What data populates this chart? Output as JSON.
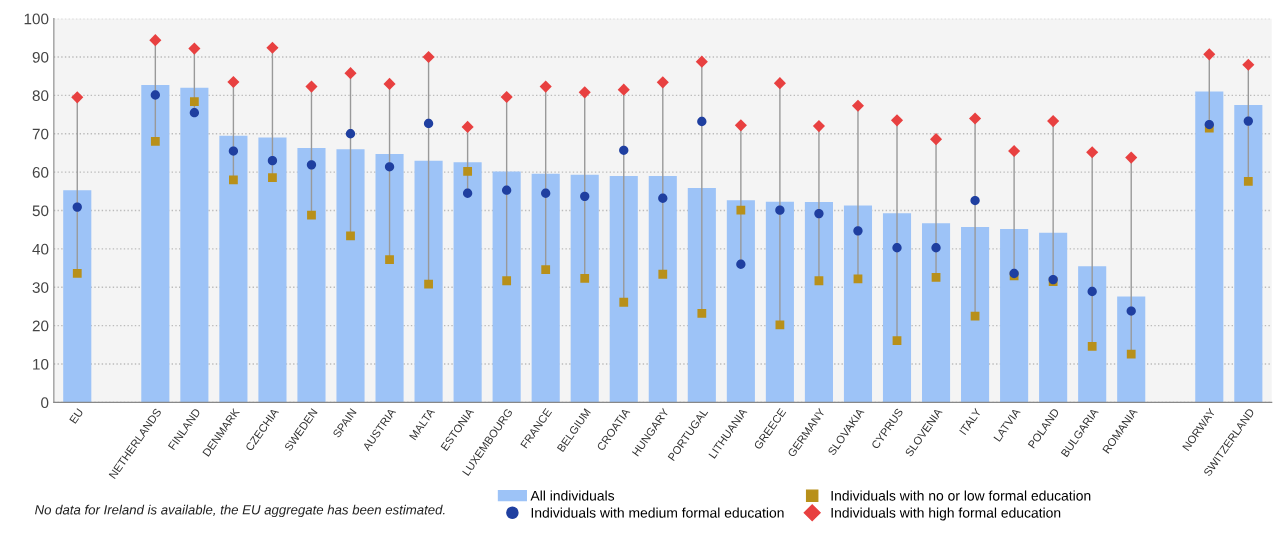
{
  "chart_data": {
    "type": "bar",
    "categories": [
      "EU",
      null,
      "NETHERLANDS",
      "FINLAND",
      "DENMARK",
      "CZECHIA",
      "SWEDEN",
      "SPAIN",
      "AUSTRIA",
      "MALTA",
      "ESTONIA",
      "LUXEMBOURG",
      "FRANCE",
      "BELGIUM",
      "CROATIA",
      "HUNGARY",
      "PORTUGAL",
      "LITHUANIA",
      "GREECE",
      "GERMANY",
      "SLOVAKIA",
      "CYPRUS",
      "SLOVENIA",
      "ITALY",
      "LATVIA",
      "POLAND",
      "BULGARIA",
      "ROMANIA",
      null,
      "NORWAY",
      "SWITZERLAND"
    ],
    "series": [
      {
        "name": "All individuals",
        "color": "#9dc3f7",
        "values": [
          55.3,
          null,
          82.7,
          82,
          69.5,
          69,
          66.3,
          66,
          64.7,
          63,
          62.6,
          60.2,
          59.6,
          59.3,
          59,
          59,
          55.9,
          52.7,
          52.3,
          52.2,
          51.3,
          49.3,
          46.7,
          45.7,
          45.2,
          44.2,
          35.5,
          27.6,
          null,
          81,
          77.5
        ]
      },
      {
        "name": "Individuals with no or low formal education",
        "type": "scatter",
        "marker": "square",
        "color": "#b8901a",
        "values": [
          33.6,
          null,
          68,
          78.4,
          58,
          58.6,
          48.8,
          43.4,
          37.2,
          30.8,
          60.2,
          31.7,
          34.6,
          32.3,
          26.1,
          33.4,
          23.2,
          50.1,
          20.2,
          31.7,
          32.2,
          16.1,
          32.6,
          22.5,
          33,
          31.5,
          14.6,
          12.6,
          null,
          71.5,
          57.6
        ]
      },
      {
        "name": "Individuals with medium formal education",
        "type": "scatter",
        "marker": "circle",
        "color": "#1f3fa0",
        "values": [
          50.9,
          null,
          80.1,
          75.5,
          65.5,
          63,
          61.9,
          70,
          61.4,
          72.7,
          54.5,
          55.3,
          54.5,
          53.7,
          65.7,
          53.2,
          73.2,
          36,
          50.1,
          49.2,
          44.7,
          40.3,
          40.3,
          52.6,
          33.6,
          32,
          28.9,
          23.8,
          null,
          72.4,
          73.3
        ]
      },
      {
        "name": "Individuals with high formal education",
        "type": "scatter",
        "marker": "diamond",
        "color": "#e84040",
        "values": [
          79.5,
          null,
          94.4,
          92.2,
          83.5,
          92.4,
          82.3,
          85.8,
          83,
          90,
          71.8,
          79.6,
          82.3,
          80.8,
          81.5,
          83.4,
          88.8,
          72.2,
          83.2,
          72,
          77.3,
          73.5,
          68.6,
          74,
          65.5,
          73.3,
          65.2,
          63.8,
          null,
          90.7,
          88
        ]
      }
    ],
    "ylim": [
      0,
      100
    ],
    "yticks": [
      0,
      10,
      20,
      30,
      40,
      50,
      60,
      70,
      80,
      90,
      100
    ],
    "grid": "y",
    "legend": "bottom",
    "annotations": [
      "No data for Ireland is available, the EU aggregate has been estimated."
    ]
  }
}
